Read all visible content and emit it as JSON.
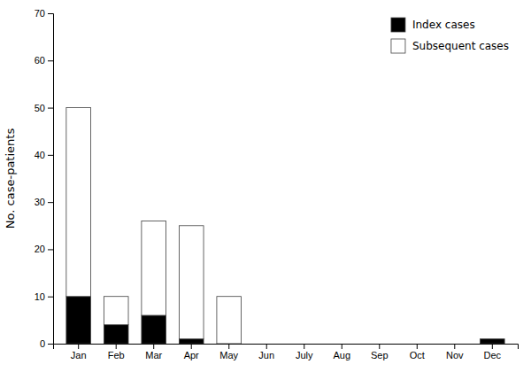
{
  "chart_data": {
    "type": "bar",
    "stacked": true,
    "categories": [
      "Jan",
      "Feb",
      "Mar",
      "Apr",
      "May",
      "Jun",
      "July",
      "Aug",
      "Sep",
      "Oct",
      "Nov",
      "Dec"
    ],
    "series": [
      {
        "name": "Index cases",
        "color": "#000000",
        "values": [
          10,
          4,
          6,
          1,
          0,
          0,
          0,
          0,
          0,
          0,
          0,
          1
        ]
      },
      {
        "name": "Subsequent cases",
        "color": "#ffffff",
        "values": [
          40,
          6,
          20,
          24,
          10,
          0,
          0,
          0,
          0,
          0,
          0,
          0
        ]
      }
    ],
    "ylabel": "No. case-patients",
    "ylim": [
      0,
      70
    ],
    "yticks": [
      0,
      10,
      20,
      30,
      40,
      50,
      60,
      70
    ],
    "grid": false,
    "legend": "upper right"
  }
}
